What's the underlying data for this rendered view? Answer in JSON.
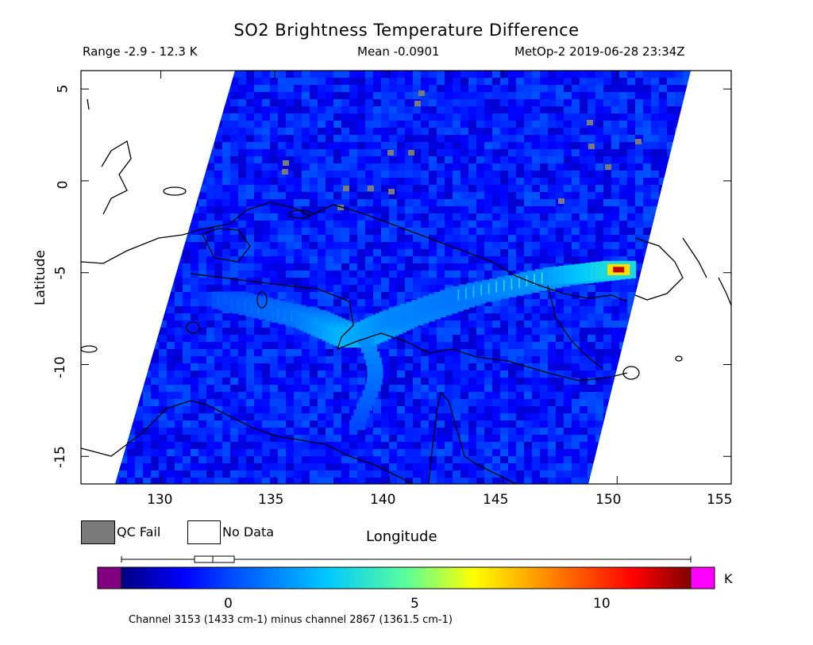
{
  "header": {
    "title": "SO2 Brightness Temperature Difference",
    "range": "Range -2.9 - 12.3 K",
    "mean": "Mean -0.0901",
    "satellite_time": "MetOp-2 2019-06-28 23:34Z"
  },
  "axes": {
    "ylabel": "Latitude",
    "xlabel": "Longitude",
    "lat_ticks": [
      "5",
      "0",
      "-5",
      "-10",
      "-15"
    ],
    "lon_ticks": [
      "130",
      "135",
      "140",
      "145",
      "150",
      "155"
    ]
  },
  "legend": {
    "qc_fail": "QC Fail",
    "no_data": "No Data",
    "qc_color": "#7a7a7a"
  },
  "colorbar": {
    "ticks": [
      "0",
      "5",
      "10"
    ],
    "unit": "K",
    "note": "Channel 3153 (1433 cm-1) minus channel 2867 (1361.5 cm-1)",
    "below_color": "#800080",
    "above_color": "#ff00ff"
  },
  "chart_data": {
    "type": "heatmap",
    "title": "SO2 Brightness Temperature Difference",
    "xlabel": "Longitude",
    "ylabel": "Latitude",
    "xlim": [
      126.5,
      155
    ],
    "ylim": [
      -16.5,
      6
    ],
    "value_range": [
      -2.9,
      12.3
    ],
    "mean": -0.0901,
    "unit": "K",
    "colorbar_range": [
      -1.5,
      12.3
    ],
    "plume_track": [
      {
        "lon": 133.0,
        "lat": -6.5,
        "value": 3.5
      },
      {
        "lon": 136.5,
        "lat": -7.5,
        "value": 5.5
      },
      {
        "lon": 138.5,
        "lat": -8.6,
        "value": 9.0
      },
      {
        "lon": 140.5,
        "lat": -7.5,
        "value": 6.5
      },
      {
        "lon": 143.5,
        "lat": -6.2,
        "value": 5.5
      },
      {
        "lon": 147.5,
        "lat": -5.2,
        "value": 7.5
      },
      {
        "lon": 150.3,
        "lat": -4.8,
        "value": 12.0
      }
    ]
  }
}
